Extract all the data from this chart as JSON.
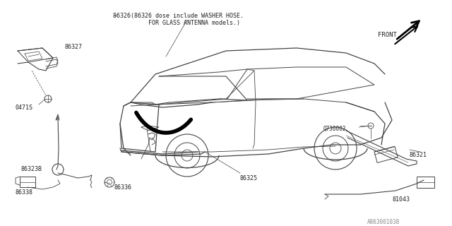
{
  "bg_color": "#ffffff",
  "line_color": "#444444",
  "text_color": "#222222",
  "note_line1": "86326(86326 dose include WASHER HOSE.",
  "note_line2": "     FOR GLASS ANTENNA models.)",
  "catalog_num": "A863001038",
  "figsize": [
    6.4,
    3.2
  ],
  "dpi": 100
}
